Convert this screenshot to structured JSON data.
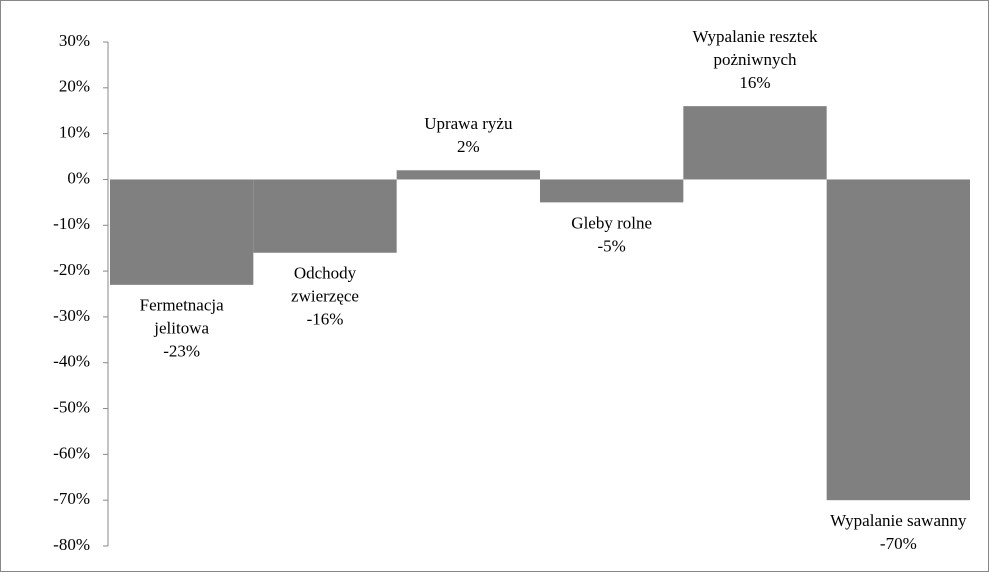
{
  "chart_data": {
    "type": "bar",
    "categories": [
      [
        "Fermetnacja",
        "jelitowa"
      ],
      [
        "Odchody",
        "zwierzęce"
      ],
      [
        "Uprawa ryżu"
      ],
      [
        "Gleby rolne"
      ],
      [
        "Wypalanie resztek",
        "pożniwnych"
      ],
      [
        "Wypalanie sawanny"
      ]
    ],
    "values": [
      -23,
      -16,
      2,
      -5,
      16,
      -70
    ],
    "value_labels": [
      "-23%",
      "-16%",
      "2%",
      "-5%",
      "16%",
      "-70%"
    ],
    "color": "#808080",
    "ylim": [
      -80,
      30
    ],
    "yticks": [
      {
        "value": -80,
        "label": "-80%"
      },
      {
        "value": -70,
        "label": "-70%"
      },
      {
        "value": -60,
        "label": "-60%"
      },
      {
        "value": -50,
        "label": "-50%"
      },
      {
        "value": -40,
        "label": "-40%"
      },
      {
        "value": -30,
        "label": "-30%"
      },
      {
        "value": -20,
        "label": "-20%"
      },
      {
        "value": -10,
        "label": "-10%"
      },
      {
        "value": 0,
        "label": "0%"
      },
      {
        "value": 10,
        "label": "10%"
      },
      {
        "value": 20,
        "label": "20%"
      },
      {
        "value": 30,
        "label": "30%"
      }
    ]
  }
}
